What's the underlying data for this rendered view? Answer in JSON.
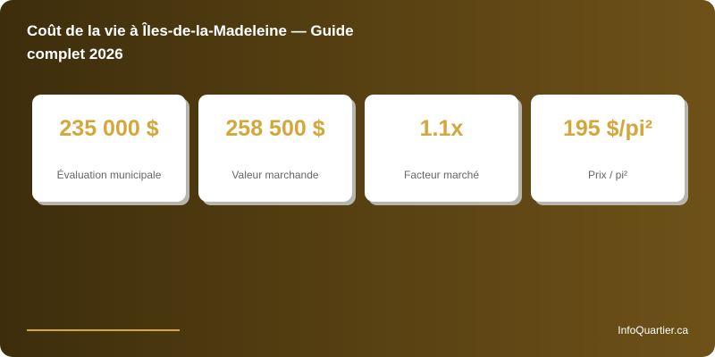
{
  "title": "Coût de la vie à Îles-de-la-Madeleine — Guide complet 2026",
  "cards": [
    {
      "value": "235 000 $",
      "label": "Évaluation municipale"
    },
    {
      "value": "258 500 $",
      "label": "Valeur marchande"
    },
    {
      "value": "1.1x",
      "label": "Facteur marché"
    },
    {
      "value": "195 $/pi²",
      "label": "Prix / pi²"
    }
  ],
  "footer": {
    "brand": "InfoQuartier.ca"
  },
  "colors": {
    "accent": "#d4a73a",
    "bg_start": "#3d2d0c",
    "bg_end": "#6d5118"
  }
}
